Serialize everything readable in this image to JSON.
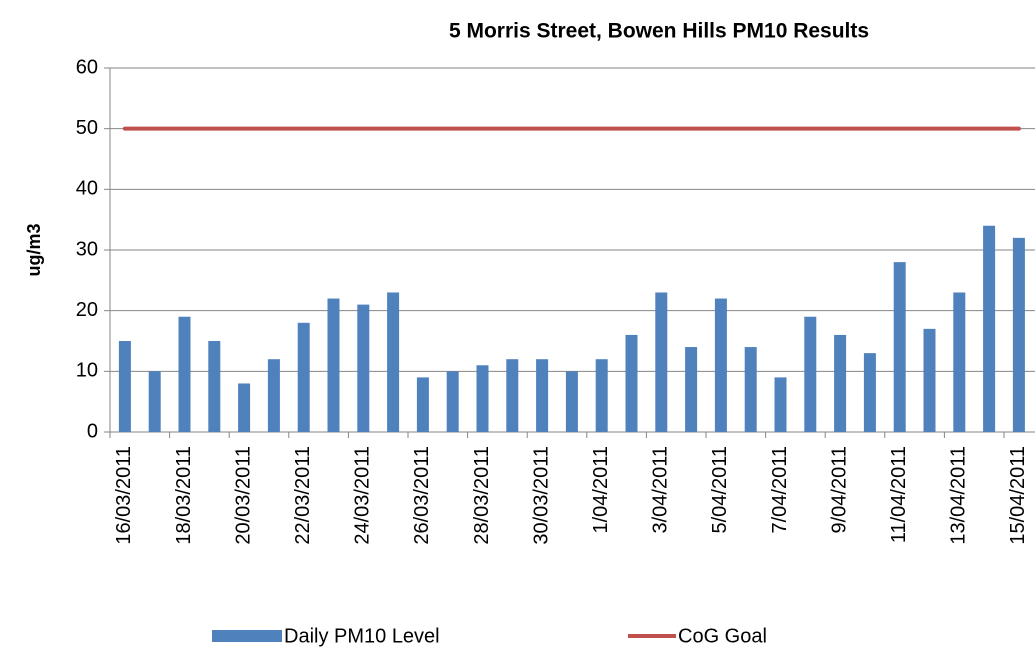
{
  "chart_data": {
    "type": "bar_line",
    "title": "5 Morris Street, Bowen Hills PM10 Results",
    "ylabel": "ug/m3",
    "categories": [
      "16/03/2011",
      null,
      "18/03/2011",
      null,
      "20/03/2011",
      null,
      "22/03/2011",
      null,
      "24/03/2011",
      null,
      "26/03/2011",
      null,
      "28/03/2011",
      null,
      "30/03/2011",
      null,
      "1/04/2011",
      null,
      "3/04/2011",
      null,
      "5/04/2011",
      null,
      "7/04/2011",
      null,
      "9/04/2011",
      null,
      "11/04/2011",
      null,
      "13/04/2011",
      null,
      "15/04/2011"
    ],
    "series": [
      {
        "name": "Daily PM10 Level",
        "type": "bar",
        "color": "#4f81bd",
        "values": [
          15,
          10,
          19,
          15,
          8,
          12,
          18,
          22,
          21,
          23,
          9,
          10,
          11,
          12,
          12,
          10,
          12,
          16,
          23,
          14,
          22,
          14,
          9,
          19,
          16,
          13,
          28,
          17,
          23,
          34,
          32
        ]
      },
      {
        "name": "CoG Goal",
        "type": "line",
        "color": "#c0504d",
        "values": [
          50,
          50,
          50,
          50,
          50,
          50,
          50,
          50,
          50,
          50,
          50,
          50,
          50,
          50,
          50,
          50,
          50,
          50,
          50,
          50,
          50,
          50,
          50,
          50,
          50,
          50,
          50,
          50,
          50,
          50,
          50
        ]
      }
    ],
    "ylim": [
      0,
      60
    ],
    "yticks": [
      0,
      10,
      20,
      30,
      40,
      50,
      60
    ],
    "grid": true,
    "legend": "bottom"
  }
}
